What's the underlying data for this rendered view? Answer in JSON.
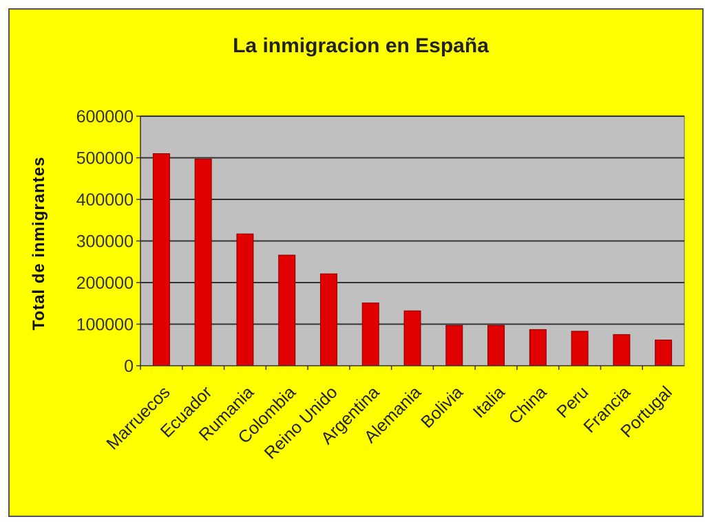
{
  "chart_data": {
    "type": "bar",
    "title": "La inmigracion en España",
    "xlabel": "",
    "ylabel": "Total de inmigrantes",
    "ylim": [
      0,
      600000
    ],
    "yticks": [
      "0",
      "100000",
      "200000",
      "300000",
      "400000",
      "500000",
      "600000"
    ],
    "grid": true,
    "categories": [
      "Marruecos",
      "Ecuador",
      "Rumania",
      "Colombia",
      "Reino Unido",
      "Argentina",
      "Alemania",
      "Bolivia",
      "Italia",
      "China",
      "Peru",
      "Francia",
      "Portugal"
    ],
    "values": [
      510000,
      497000,
      317000,
      266000,
      221000,
      151000,
      132000,
      97000,
      97000,
      87000,
      83000,
      75000,
      62000
    ]
  },
  "colors": {
    "background": "#ffff00",
    "plot_area": "#c0c0c0",
    "bar": "#e00000",
    "gridline": "#333333"
  }
}
